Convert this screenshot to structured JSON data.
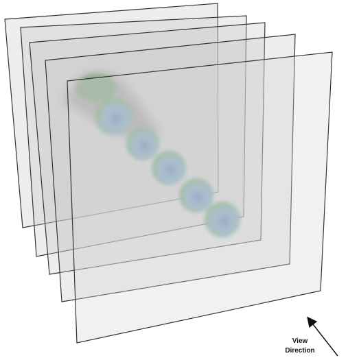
{
  "label": {
    "lines": [
      "View",
      "Direction"
    ]
  }
}
